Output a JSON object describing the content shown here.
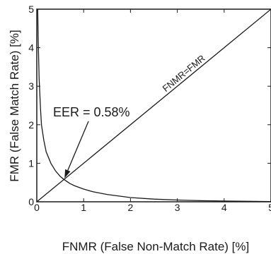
{
  "chart_data": {
    "type": "line",
    "title": "",
    "xlabel": "FNMR (False Non-Match Rate) [%]",
    "ylabel": "FMR (False Match Rate) [%]",
    "xlim": [
      0,
      5
    ],
    "ylim": [
      0,
      5
    ],
    "xticks": [
      "0",
      "1",
      "2",
      "3",
      "4",
      "5"
    ],
    "yticks": [
      "0",
      "1",
      "2",
      "3",
      "4",
      "5"
    ],
    "grid": false,
    "series": [
      {
        "name": "",
        "x": [
          0.02,
          0.03,
          0.05,
          0.08,
          0.1,
          0.15,
          0.2,
          0.3,
          0.4,
          0.5,
          0.58,
          0.7,
          0.8,
          1.0,
          1.2,
          1.5,
          2.0,
          2.5,
          3.0,
          3.5,
          4.0,
          4.5,
          5.0
        ],
        "y": [
          5.0,
          4.2,
          3.2,
          2.4,
          2.0,
          1.6,
          1.3,
          1.0,
          0.8,
          0.66,
          0.58,
          0.48,
          0.42,
          0.33,
          0.26,
          0.19,
          0.11,
          0.07,
          0.045,
          0.03,
          0.02,
          0.012,
          0.008
        ]
      },
      {
        "name": "FNMR=FMR",
        "x": [
          0,
          5
        ],
        "y": [
          0,
          5
        ]
      }
    ],
    "annotations": [
      {
        "text": "EER = 0.58%",
        "x": 0.58,
        "y": 0.58
      },
      {
        "text": "FNMR=FMR"
      }
    ]
  }
}
